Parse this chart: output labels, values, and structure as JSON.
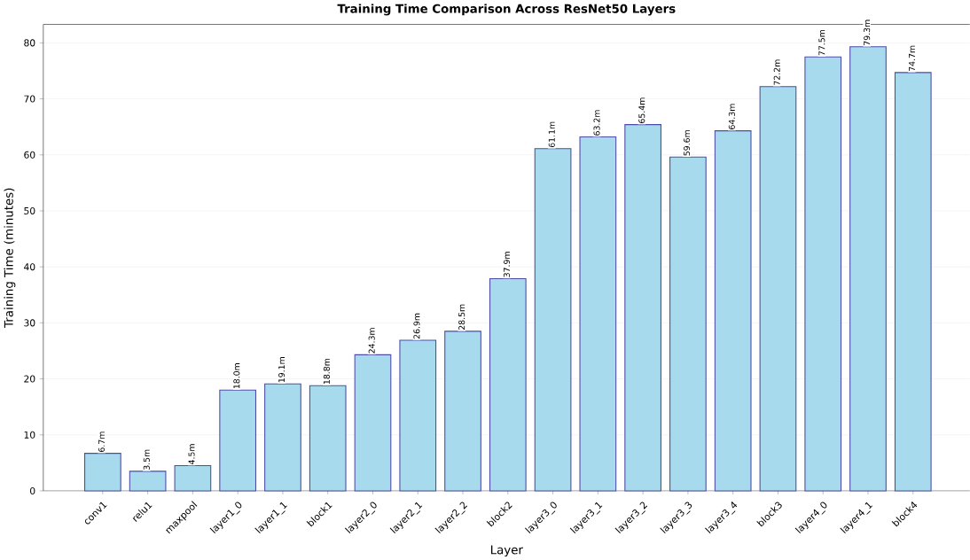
{
  "chart_data": {
    "type": "bar",
    "title": "Training Time Comparison Across ResNet50 Layers",
    "xlabel": "Layer",
    "ylabel": "Training Time (minutes)",
    "categories": [
      "conv1",
      "relu1",
      "maxpool",
      "layer1_0",
      "layer1_1",
      "block1",
      "layer2_0",
      "layer2_1",
      "layer2_2",
      "block2",
      "layer3_0",
      "layer3_1",
      "layer3_2",
      "layer3_3",
      "layer3_4",
      "block3",
      "layer4_0",
      "layer4_1",
      "block4"
    ],
    "values": [
      6.7,
      3.5,
      4.5,
      18.0,
      19.1,
      18.8,
      24.3,
      26.9,
      28.5,
      37.9,
      61.1,
      63.2,
      65.4,
      59.6,
      64.3,
      72.2,
      77.5,
      79.3,
      74.7
    ],
    "value_labels": [
      "6.7m",
      "3.5m",
      "4.5m",
      "18.0m",
      "19.1m",
      "18.8m",
      "24.3m",
      "26.9m",
      "28.5m",
      "37.9m",
      "61.1m",
      "63.2m",
      "65.4m",
      "59.6m",
      "64.3m",
      "72.2m",
      "77.5m",
      "79.3m",
      "74.7m"
    ],
    "color": "#a8daee",
    "ylim": [
      0,
      83.3
    ],
    "yticks": [
      0,
      10,
      20,
      30,
      40,
      50,
      60,
      70,
      80
    ],
    "grid": "y"
  }
}
